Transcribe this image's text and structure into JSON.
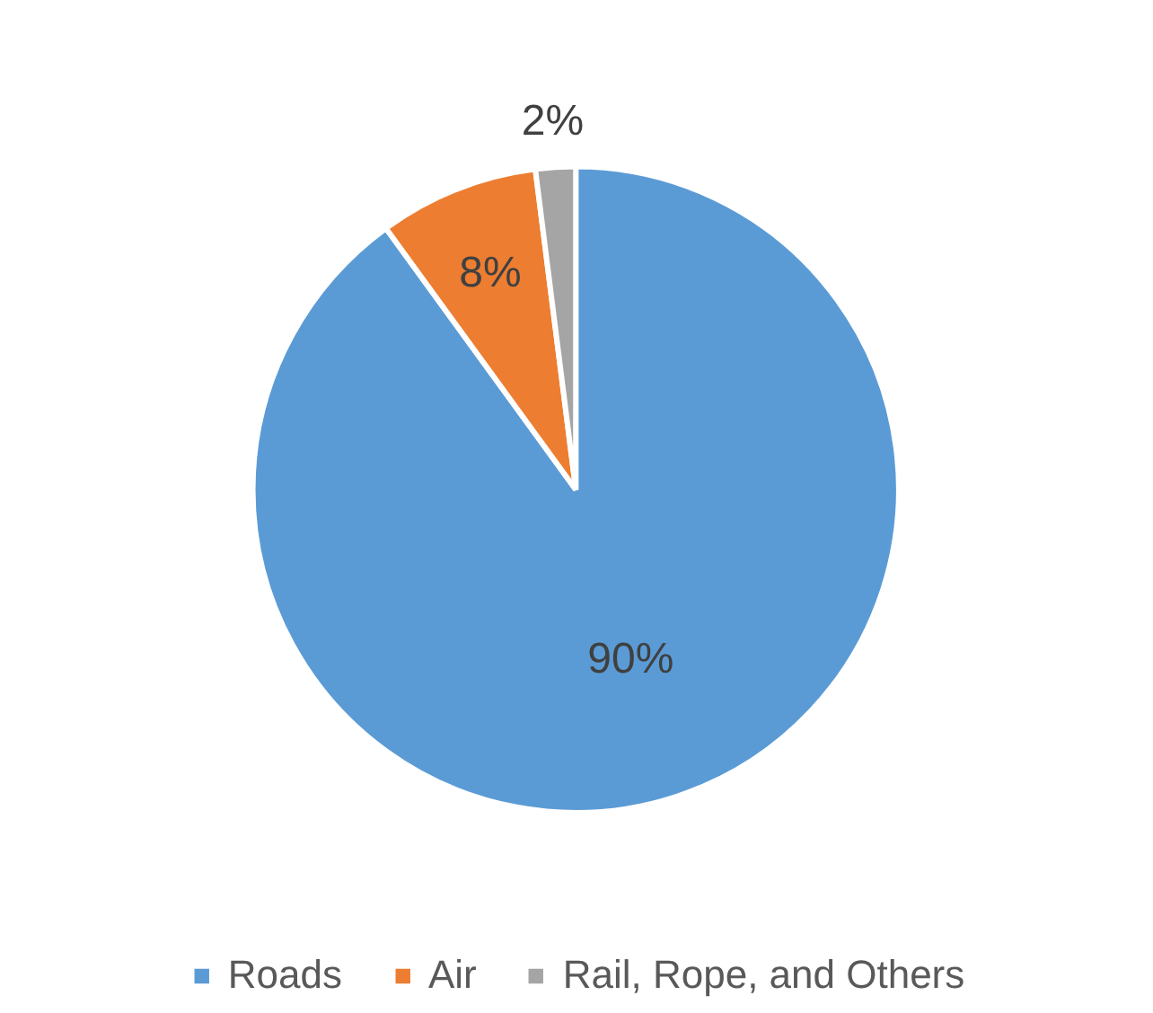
{
  "chart_data": {
    "type": "pie",
    "categories": [
      "Roads",
      "Air",
      "Rail, Rope, and Others"
    ],
    "values": [
      90,
      8,
      2
    ],
    "colors": [
      "#5b9bd5",
      "#ed7d31",
      "#a5a5a5"
    ],
    "value_labels": [
      "90%",
      "8%",
      "2%"
    ],
    "legend": "bottom"
  }
}
